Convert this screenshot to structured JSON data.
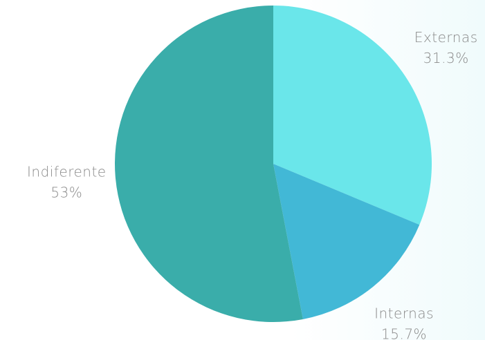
{
  "chart_data": {
    "type": "pie",
    "categories": [
      "Externas",
      "Internas",
      "Indiferente"
    ],
    "values": [
      31.3,
      15.7,
      53
    ],
    "value_labels": [
      "31.3%",
      "15.7%",
      "53%"
    ],
    "colors": [
      "#6ae6ea",
      "#42b8d6",
      "#3aadaa"
    ]
  }
}
